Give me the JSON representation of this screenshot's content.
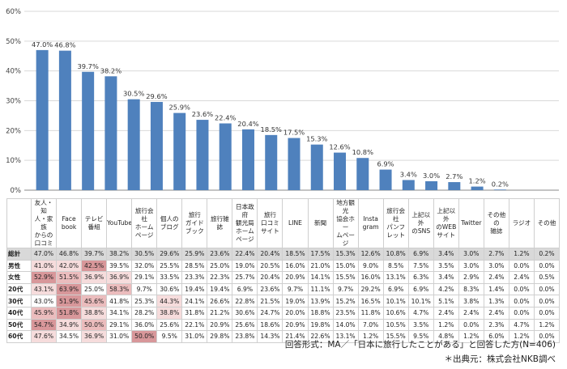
{
  "chart_data": {
    "type": "bar",
    "categories": [
      "友人・知人・家族からの口コミ",
      "Facebook",
      "テレビ番組",
      "YouTube",
      "旅行会社ホームページ",
      "個人のブログ",
      "旅行ガイドブック",
      "旅行雑誌",
      "日本政府観光局ホームページ",
      "旅行口コミサイト",
      "LINE",
      "新聞",
      "地方観光協会ホームページ",
      "Instagram",
      "旅行会社パンフレット",
      "上記以外のSNS",
      "上記以外のWEBサイト",
      "Twitter",
      "その他の雑誌",
      "ラジオ",
      "その他"
    ],
    "header_labels": [
      "友人・知\n人・家族\nからの\n口コミ",
      "Face\nbook",
      "テレビ\n番組",
      "YouTube",
      "旅行会社\nホーム\nページ",
      "個人の\nブログ",
      "旅行\nガイド\nブック",
      "旅行雑誌",
      "日本政府\n観光局\nホーム\nページ",
      "旅行\n口コミ\nサイト",
      "LINE",
      "新聞",
      "地方観光\n協会ホー\nムページ",
      "Insta\ngram",
      "旅行会社\nパンフ\nレット",
      "上記以外\nのSNS",
      "上記以外\nのWEB\nサイト",
      "Twitter",
      "その他の\n雑誌",
      "ラジオ",
      "その他"
    ],
    "values": [
      47.0,
      46.8,
      39.7,
      38.2,
      30.5,
      29.6,
      25.9,
      23.6,
      22.4,
      20.4,
      18.5,
      17.5,
      15.3,
      12.6,
      10.8,
      6.9,
      3.4,
      3.0,
      2.7,
      1.2,
      0.2
    ],
    "ylim": [
      0,
      60
    ],
    "yticks": [
      "0%",
      "10%",
      "20%",
      "30%",
      "40%",
      "50%",
      "60%"
    ],
    "grid": true,
    "bar_color": "#4f81bd",
    "table_rows": [
      {
        "label": "総計",
        "values": [
          "47.0%",
          "46.8%",
          "39.7%",
          "38.2%",
          "30.5%",
          "29.6%",
          "25.9%",
          "23.6%",
          "22.4%",
          "20.4%",
          "18.5%",
          "17.5%",
          "15.3%",
          "12.6%",
          "10.8%",
          "6.9%",
          "3.4%",
          "3.0%",
          "2.7%",
          "1.2%",
          "0.2%"
        ]
      },
      {
        "label": "男性",
        "values": [
          "41.0%",
          "42.0%",
          "42.5%",
          "39.5%",
          "32.0%",
          "25.5%",
          "28.5%",
          "25.0%",
          "19.0%",
          "20.5%",
          "16.0%",
          "21.0%",
          "15.0%",
          "9.0%",
          "8.5%",
          "7.5%",
          "3.5%",
          "3.0%",
          "3.0%",
          "0.0%",
          "0.0%"
        ]
      },
      {
        "label": "女性",
        "values": [
          "52.9%",
          "51.5%",
          "36.9%",
          "36.9%",
          "29.1%",
          "33.5%",
          "23.3%",
          "22.3%",
          "25.7%",
          "20.4%",
          "20.9%",
          "14.1%",
          "15.5%",
          "16.0%",
          "13.1%",
          "6.3%",
          "3.4%",
          "2.9%",
          "2.4%",
          "2.4%",
          "0.5%"
        ]
      },
      {
        "label": "20代",
        "values": [
          "43.1%",
          "63.9%",
          "25.0%",
          "58.3%",
          "9.7%",
          "30.6%",
          "19.4%",
          "19.4%",
          "6.9%",
          "23.6%",
          "9.7%",
          "11.1%",
          "9.7%",
          "29.2%",
          "6.9%",
          "6.9%",
          "4.2%",
          "8.3%",
          "1.4%",
          "0.0%",
          "0.0%"
        ]
      },
      {
        "label": "30代",
        "values": [
          "43.0%",
          "51.9%",
          "45.6%",
          "41.8%",
          "25.3%",
          "44.3%",
          "24.1%",
          "26.6%",
          "22.8%",
          "21.5%",
          "19.0%",
          "13.9%",
          "15.2%",
          "16.5%",
          "10.1%",
          "10.1%",
          "5.1%",
          "3.8%",
          "1.3%",
          "0.0%",
          "0.0%"
        ]
      },
      {
        "label": "40代",
        "values": [
          "45.9%",
          "51.8%",
          "38.8%",
          "34.1%",
          "28.2%",
          "38.8%",
          "31.8%",
          "21.2%",
          "30.6%",
          "24.7%",
          "20.0%",
          "18.8%",
          "23.5%",
          "11.8%",
          "10.6%",
          "4.7%",
          "2.4%",
          "2.4%",
          "2.4%",
          "0.0%",
          "0.0%"
        ]
      },
      {
        "label": "50代",
        "values": [
          "54.7%",
          "34.9%",
          "50.0%",
          "29.1%",
          "36.0%",
          "25.6%",
          "22.1%",
          "20.9%",
          "25.6%",
          "18.6%",
          "20.9%",
          "19.8%",
          "14.0%",
          "7.0%",
          "10.5%",
          "3.5%",
          "1.2%",
          "0.0%",
          "2.3%",
          "4.7%",
          "1.2%"
        ]
      },
      {
        "label": "60代",
        "values": [
          "47.6%",
          "34.5%",
          "36.9%",
          "31.0%",
          "50.0%",
          "9.5%",
          "31.0%",
          "29.8%",
          "23.8%",
          "14.3%",
          "21.4%",
          "22.6%",
          "13.1%",
          "1.2%",
          "15.5%",
          "9.5%",
          "4.8%",
          "1.2%",
          "6.0%",
          "1.2%",
          "0.0%"
        ]
      }
    ],
    "highlight_colors": [
      "#ffffff",
      "#f6dcdc",
      "#ebbcbd",
      "#d8979a"
    ],
    "highlights": [
      [
        1,
        0,
        1
      ],
      [
        1,
        1,
        1
      ],
      [
        1,
        2,
        3
      ],
      [
        2,
        0,
        3
      ],
      [
        2,
        1,
        2
      ],
      [
        2,
        2,
        1
      ],
      [
        2,
        3,
        1
      ],
      [
        3,
        0,
        1
      ],
      [
        3,
        1,
        3
      ],
      [
        3,
        3,
        2
      ],
      [
        4,
        1,
        3
      ],
      [
        4,
        2,
        2
      ],
      [
        4,
        5,
        1
      ],
      [
        5,
        0,
        2
      ],
      [
        5,
        1,
        3
      ],
      [
        5,
        2,
        1
      ],
      [
        5,
        5,
        1
      ],
      [
        6,
        0,
        3
      ],
      [
        6,
        1,
        1
      ],
      [
        6,
        2,
        2
      ],
      [
        7,
        0,
        1
      ],
      [
        7,
        2,
        1
      ],
      [
        7,
        4,
        3
      ]
    ]
  },
  "notes": {
    "format": "回答形式：MA／「日本に旅行したことがある」と回答した方(N=406)",
    "source": "＊出典元：株式会社NKB調べ"
  }
}
